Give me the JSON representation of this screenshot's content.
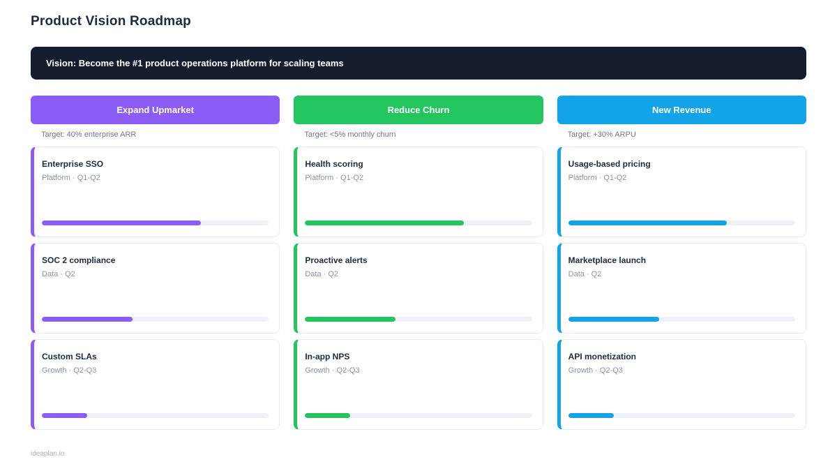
{
  "page": {
    "title": "Product Vision Roadmap",
    "vision_statement": "Vision: Become the #1 product operations platform for scaling teams",
    "footer": "ideaplan.io"
  },
  "colors": {
    "banner_bg": "#141d2e",
    "track_bg": "#eef1f6"
  },
  "columns": [
    {
      "label": "Expand Upmarket",
      "target": "Target: 40% enterprise ARR",
      "accent": "#8b5cf6",
      "cards": [
        {
          "title": "Enterprise SSO",
          "meta": "Platform · Q1-Q2",
          "progress": 70
        },
        {
          "title": "SOC 2 compliance",
          "meta": "Data · Q2",
          "progress": 40
        },
        {
          "title": "Custom SLAs",
          "meta": "Growth · Q2-Q3",
          "progress": 20
        }
      ]
    },
    {
      "label": "Reduce Churn",
      "target": "Target: <5% monthly churn",
      "accent": "#22c55e",
      "cards": [
        {
          "title": "Health scoring",
          "meta": "Platform · Q1-Q2",
          "progress": 70
        },
        {
          "title": "Proactive alerts",
          "meta": "Data · Q2",
          "progress": 40
        },
        {
          "title": "In-app NPS",
          "meta": "Growth · Q2-Q3",
          "progress": 20
        }
      ]
    },
    {
      "label": "New Revenue",
      "target": "Target: +30% ARPU",
      "accent": "#12a3e8",
      "cards": [
        {
          "title": "Usage-based pricing",
          "meta": "Platform · Q1-Q2",
          "progress": 70
        },
        {
          "title": "Marketplace launch",
          "meta": "Data · Q2",
          "progress": 40
        },
        {
          "title": "API monetization",
          "meta": "Growth · Q2-Q3",
          "progress": 20
        }
      ]
    }
  ]
}
